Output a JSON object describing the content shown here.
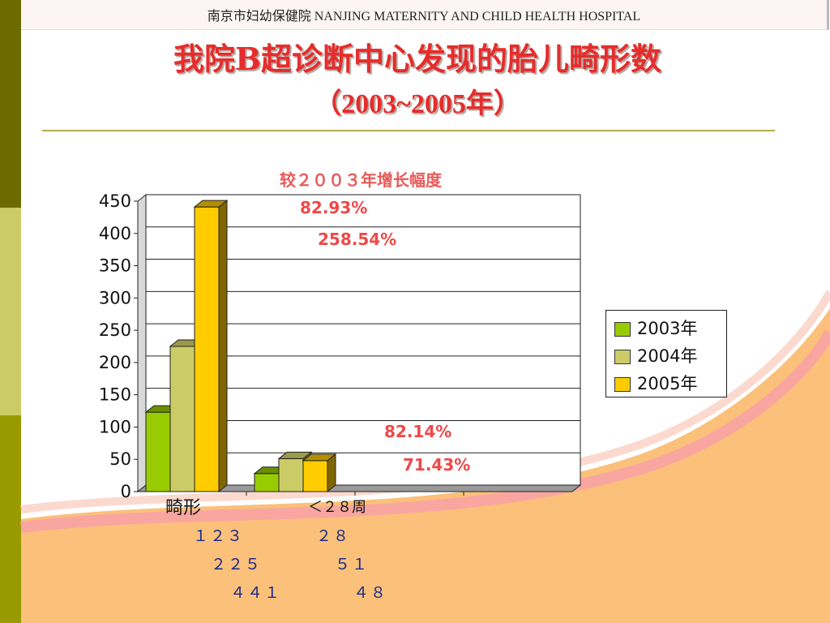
{
  "header": {
    "text": "南京市妇幼保健院  NANJING MATERNITY AND CHILD HEALTH HOSPITAL"
  },
  "title": {
    "line1": "我院B超诊断中心发现的胎儿畸形数",
    "line2": "（2003~2005年）"
  },
  "colors": {
    "y2003": "#99cc00",
    "y2004": "#cccc66",
    "y2005": "#ffcc00",
    "title": "#e62c2c",
    "percent": "#f04848",
    "value_text": "#1a2a8c"
  },
  "chart_data": {
    "type": "bar",
    "subtitle": "较２００３年增长幅度",
    "categories": [
      "畸形",
      "＜２８周"
    ],
    "series": [
      {
        "name": "2003年",
        "values": [
          123,
          28
        ]
      },
      {
        "name": "2004年",
        "values": [
          225,
          51
        ]
      },
      {
        "name": "2005年",
        "values": [
          441,
          48
        ]
      }
    ],
    "ylim": [
      0,
      450
    ],
    "yticks": [
      "0",
      "50",
      "100",
      "150",
      "200",
      "250",
      "300",
      "350",
      "400",
      "450"
    ],
    "legend_position": "right",
    "grid": true,
    "annotations": [
      "82.93%",
      "258.54%",
      "82.14%",
      "71.43%"
    ]
  },
  "value_rows": [
    [
      "１２３",
      "２８"
    ],
    [
      "２２５",
      "５１"
    ],
    [
      "４４１",
      "４８"
    ]
  ]
}
